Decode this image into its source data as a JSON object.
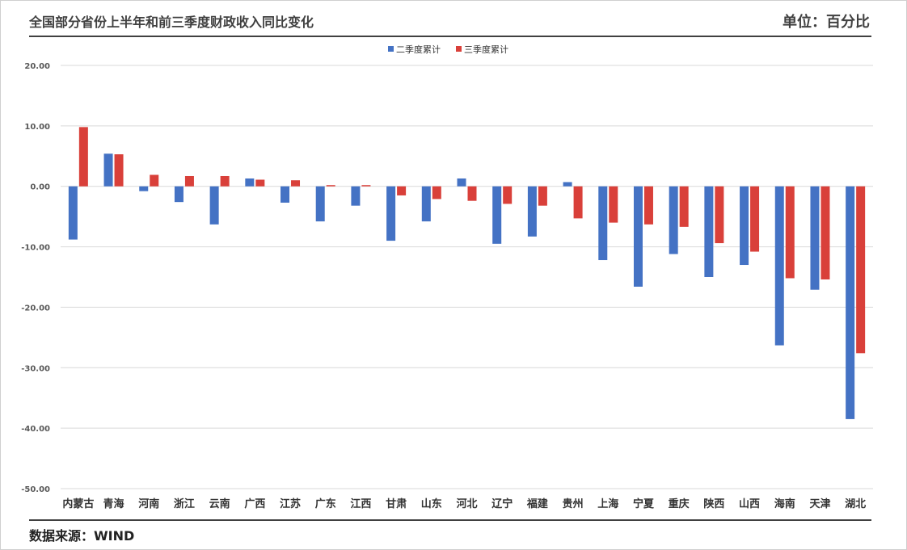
{
  "header": {
    "title": "全国部分省份上半年和前三季度财政收入同比变化",
    "unit": "单位：百分比"
  },
  "footer": {
    "source": "数据来源：WIND"
  },
  "chart_data": {
    "type": "bar",
    "title": "全国部分省份上半年和前三季度财政收入同比变化",
    "xlabel": "",
    "ylabel": "",
    "ylim": [
      -50,
      20
    ],
    "yticks": [
      "20.00",
      "10.00",
      "0.00",
      "-10.00",
      "-20.00",
      "-30.00",
      "-40.00",
      "-50.00"
    ],
    "grid": true,
    "legend": "top-center",
    "categories": [
      "内蒙古",
      "青海",
      "河南",
      "浙江",
      "云南",
      "广西",
      "江苏",
      "广东",
      "江西",
      "甘肃",
      "山东",
      "河北",
      "辽宁",
      "福建",
      "贵州",
      "上海",
      "宁夏",
      "重庆",
      "陕西",
      "山西",
      "海南",
      "天津",
      "湖北"
    ],
    "series": [
      {
        "name": "二季度累计",
        "color": "#4472c4",
        "values": [
          -8.8,
          5.4,
          -0.8,
          -2.6,
          -6.3,
          1.3,
          -2.7,
          -5.8,
          -3.2,
          -9.0,
          -5.8,
          1.3,
          -9.5,
          -8.3,
          0.7,
          -12.2,
          -16.6,
          -11.2,
          -15.0,
          -13.0,
          -26.3,
          -17.1,
          -38.5
        ]
      },
      {
        "name": "三季度累计",
        "color": "#d9403a",
        "values": [
          9.8,
          5.3,
          1.9,
          1.7,
          1.7,
          1.1,
          1.0,
          0.2,
          0.2,
          -1.5,
          -2.1,
          -2.4,
          -2.9,
          -3.2,
          -5.3,
          -6.0,
          -6.3,
          -6.7,
          -9.4,
          -10.8,
          -15.2,
          -15.4,
          -27.6
        ]
      }
    ]
  }
}
